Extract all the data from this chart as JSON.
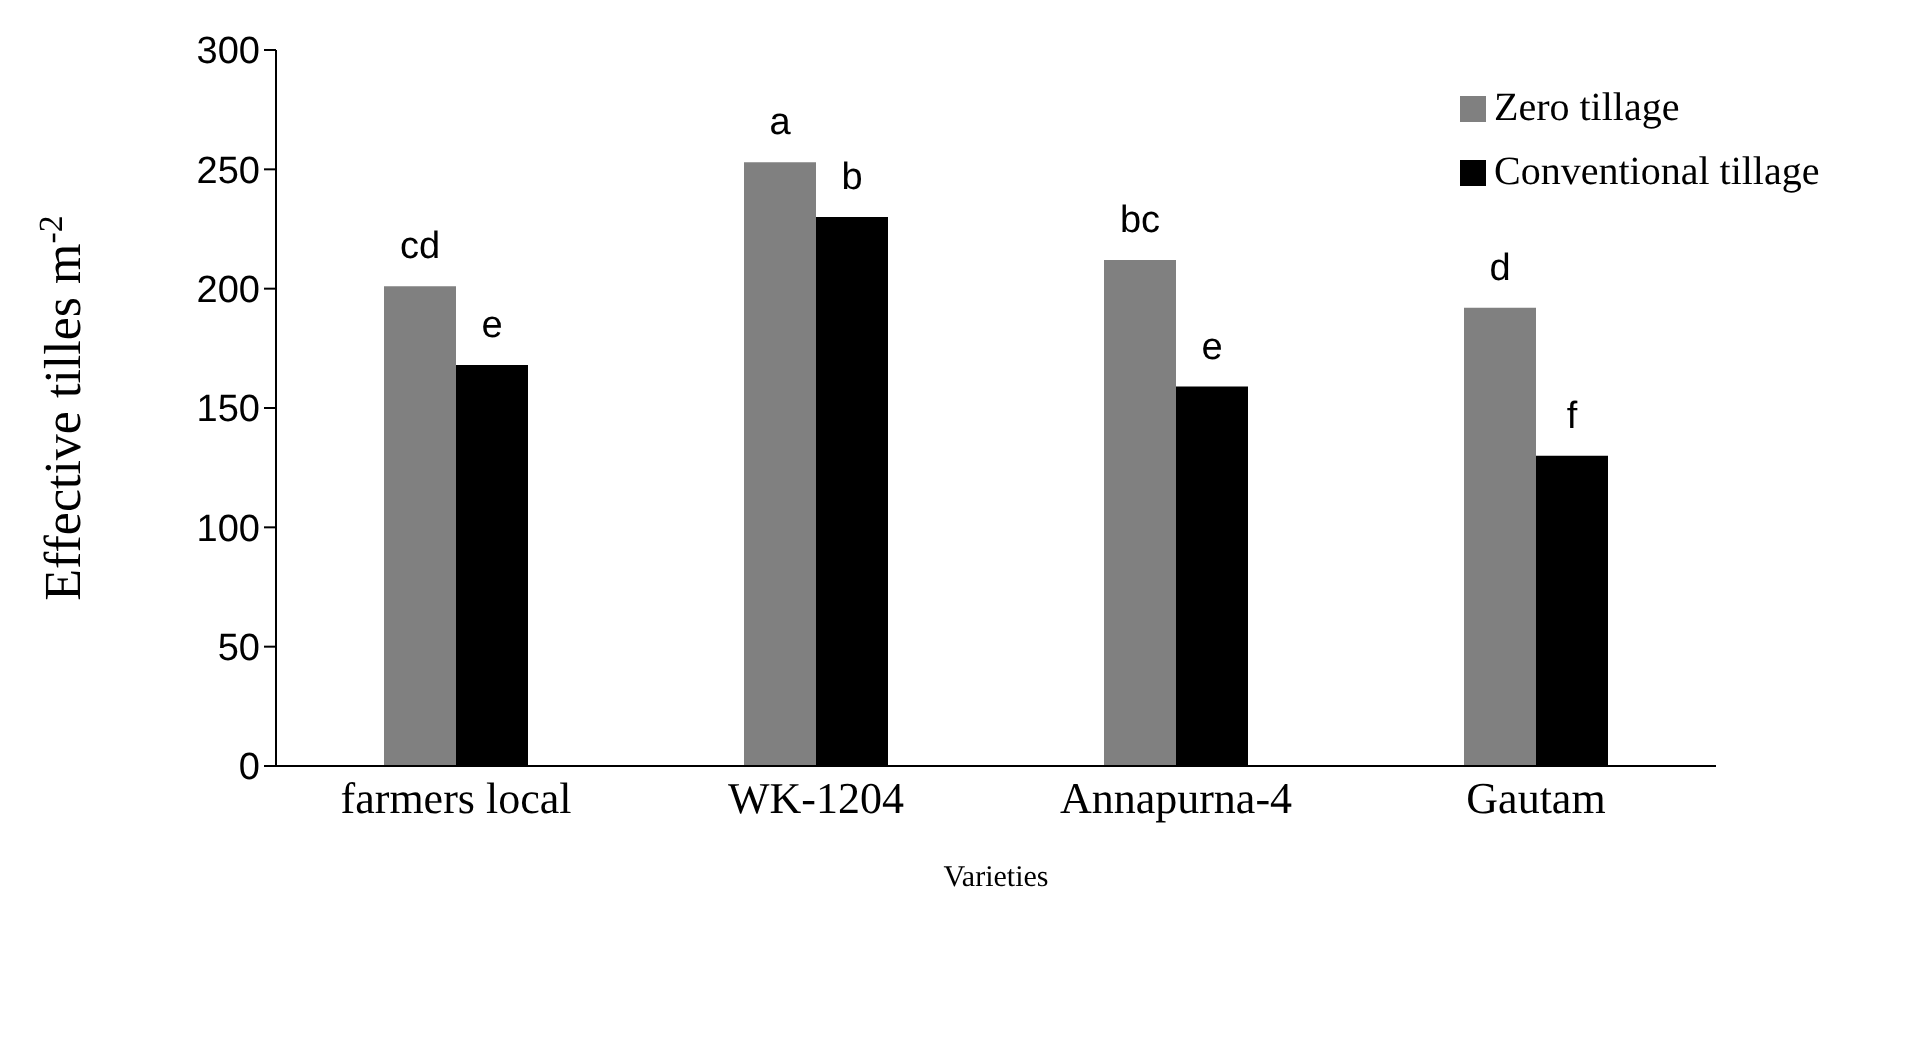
{
  "chart_data": {
    "type": "bar",
    "xlabel": "Varieties",
    "ylabel": "Effective tilles m$^{-2}$",
    "categories": [
      "farmers local",
      "WK-1204",
      "Annapurna-4",
      "Gautam"
    ],
    "series": [
      {
        "name": "Zero tillage",
        "color": "#808080",
        "values": [
          201,
          253,
          212,
          192
        ],
        "value_labels": [
          "cd",
          "a",
          "bc",
          "d"
        ]
      },
      {
        "name": "Conventional tillage",
        "color": "#000000",
        "values": [
          168,
          230,
          159,
          130
        ],
        "value_labels": [
          "e",
          "b",
          "e",
          "f"
        ]
      }
    ],
    "ylim": [
      0,
      300
    ],
    "yticks": [
      0,
      50,
      100,
      150,
      200,
      250,
      300
    ],
    "grid": false,
    "legend": "top right"
  }
}
